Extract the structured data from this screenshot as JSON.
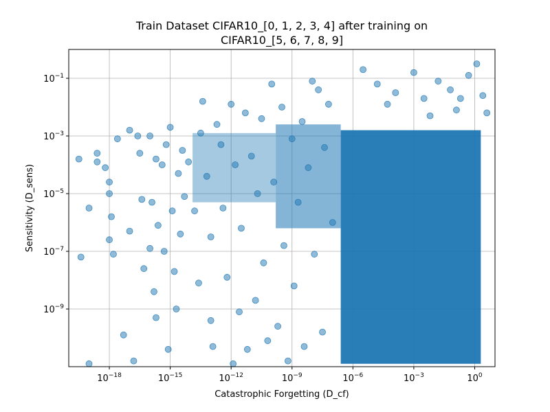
{
  "chart_data": {
    "type": "scatter",
    "title_line1": "Train Dataset CIFAR10_[0, 1, 2, 3, 4] after training on",
    "title_line2": "CIFAR10_[5, 6, 7, 8, 9]",
    "xlabel": "Catastrophic Forgetting (D_cf)",
    "ylabel": "Sensitivity (D_sens)",
    "x_scale": "log",
    "y_scale": "log",
    "xlim": [
      1e-20,
      10.0
    ],
    "ylim": [
      1e-11,
      1.0
    ],
    "x_ticks": [
      {
        "exp": -18,
        "base": "10",
        "sup": "−18"
      },
      {
        "exp": -15,
        "base": "10",
        "sup": "−15"
      },
      {
        "exp": -12,
        "base": "10",
        "sup": "−12"
      },
      {
        "exp": -9,
        "base": "10",
        "sup": "−9"
      },
      {
        "exp": -6,
        "base": "10",
        "sup": "−6"
      },
      {
        "exp": -3,
        "base": "10",
        "sup": "−3"
      },
      {
        "exp": 0,
        "base": "10",
        "sup": "0"
      }
    ],
    "y_ticks": [
      {
        "exp": -1,
        "base": "10",
        "sup": "−1"
      },
      {
        "exp": -3,
        "base": "10",
        "sup": "−3"
      },
      {
        "exp": -5,
        "base": "10",
        "sup": "−5"
      },
      {
        "exp": -7,
        "base": "10",
        "sup": "−7"
      },
      {
        "exp": -9,
        "base": "10",
        "sup": "−9"
      }
    ],
    "grid": true,
    "marker_color": "#1f77b4",
    "marker_alpha": 0.5,
    "points_sparse_log10": [
      [
        -19.5,
        -3.8
      ],
      [
        -19.4,
        -7.2
      ],
      [
        -19.0,
        -10.9
      ],
      [
        -19.0,
        -5.5
      ],
      [
        -18.6,
        -3.6
      ],
      [
        -18.6,
        -3.9
      ],
      [
        -18.2,
        -4.1
      ],
      [
        -18.0,
        -4.6
      ],
      [
        -18.0,
        -5.0
      ],
      [
        -18.0,
        -6.6
      ],
      [
        -17.9,
        -5.8
      ],
      [
        -17.8,
        -7.1
      ],
      [
        -17.6,
        -3.1
      ],
      [
        -17.3,
        -9.9
      ],
      [
        -17.0,
        -2.8
      ],
      [
        -17.0,
        -6.3
      ],
      [
        -16.8,
        -10.8
      ],
      [
        -16.6,
        -3.0
      ],
      [
        -16.5,
        -3.6
      ],
      [
        -16.4,
        -5.2
      ],
      [
        -16.3,
        -7.6
      ],
      [
        -16.0,
        -6.9
      ],
      [
        -16.0,
        -3.0
      ],
      [
        -15.9,
        -5.3
      ],
      [
        -15.8,
        -8.4
      ],
      [
        -15.7,
        -9.3
      ],
      [
        -15.7,
        -3.8
      ],
      [
        -15.6,
        -6.1
      ],
      [
        -15.4,
        -4.0
      ],
      [
        -15.3,
        -7.0
      ],
      [
        -15.2,
        -3.3
      ],
      [
        -15.1,
        -10.4
      ],
      [
        -15.0,
        -2.7
      ],
      [
        -14.9,
        -5.6
      ],
      [
        -14.8,
        -7.7
      ],
      [
        -14.7,
        -9.0
      ],
      [
        -14.6,
        -4.3
      ],
      [
        -14.5,
        -6.4
      ],
      [
        -14.4,
        -3.5
      ],
      [
        -14.3,
        -5.1
      ],
      [
        -14.1,
        -3.9
      ],
      [
        -13.8,
        -5.6
      ],
      [
        -13.6,
        -8.1
      ]
    ],
    "points_band_log10": [
      [
        -13.5,
        -2.9
      ],
      [
        -13.4,
        -1.8
      ],
      [
        -13.2,
        -4.4
      ],
      [
        -13.0,
        -6.5
      ],
      [
        -13.0,
        -9.4
      ],
      [
        -12.9,
        -10.3
      ],
      [
        -12.7,
        -2.6
      ],
      [
        -12.5,
        -3.3
      ],
      [
        -12.4,
        -5.5
      ],
      [
        -12.2,
        -7.9
      ],
      [
        -12.0,
        -1.9
      ],
      [
        -11.9,
        -10.9
      ],
      [
        -11.8,
        -4.0
      ],
      [
        -11.6,
        -9.1
      ],
      [
        -11.5,
        -6.2
      ],
      [
        -11.3,
        -2.2
      ],
      [
        -11.2,
        -10.4
      ],
      [
        -11.0,
        -3.7
      ],
      [
        -10.8,
        -8.7
      ],
      [
        -10.7,
        -5.0
      ],
      [
        -10.5,
        -2.4
      ],
      [
        -10.4,
        -7.4
      ],
      [
        -10.2,
        -10.1
      ],
      [
        -10.0,
        -1.2
      ],
      [
        -9.9,
        -4.6
      ],
      [
        -9.7,
        -9.6
      ],
      [
        -9.5,
        -2.0
      ],
      [
        -9.4,
        -6.8
      ],
      [
        -9.2,
        -10.8
      ],
      [
        -9.0,
        -3.1
      ],
      [
        -8.9,
        -8.2
      ],
      [
        -8.7,
        -5.3
      ],
      [
        -8.5,
        -2.5
      ],
      [
        -8.4,
        -10.3
      ],
      [
        -8.2,
        -4.1
      ],
      [
        -8.0,
        -1.1
      ],
      [
        -7.9,
        -7.1
      ],
      [
        -7.7,
        -1.4
      ],
      [
        -7.5,
        -9.8
      ],
      [
        -7.4,
        -3.4
      ],
      [
        -7.2,
        -1.9
      ],
      [
        -7.0,
        -6.0
      ]
    ]
  }
}
